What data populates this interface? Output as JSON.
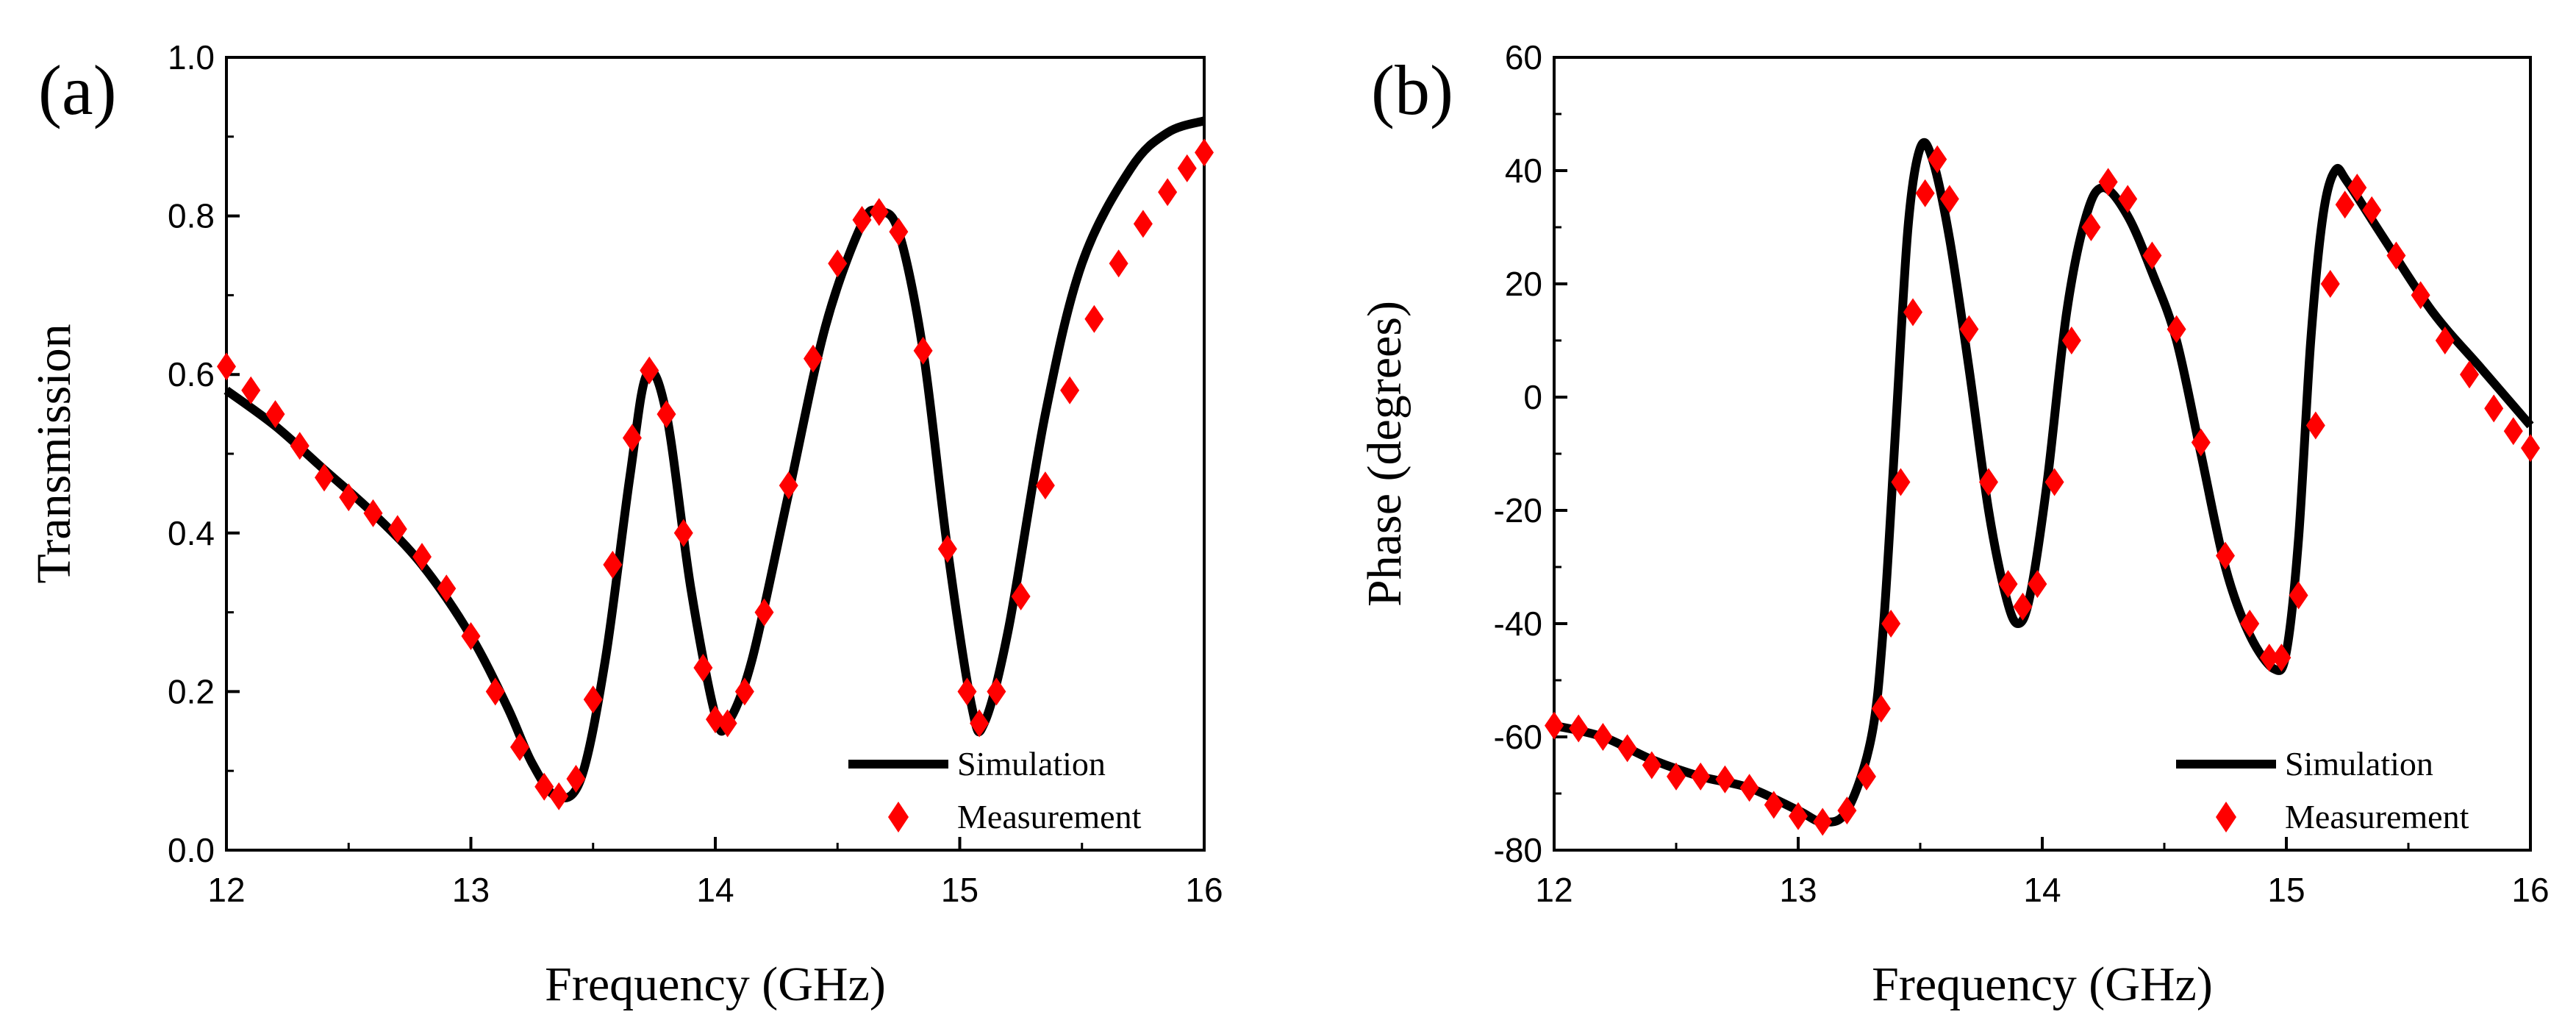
{
  "chart_data": [
    {
      "type": "line",
      "panel_label": "(a)",
      "xlabel": "Frequency (GHz)",
      "ylabel": "Transmission",
      "xlim": [
        12,
        16
      ],
      "ylim": [
        0.0,
        1.0
      ],
      "xticks": [
        12,
        13,
        14,
        15,
        16
      ],
      "xtick_labels": [
        "12",
        "13",
        "14",
        "15",
        "16"
      ],
      "yticks": [
        0.0,
        0.2,
        0.4,
        0.6,
        0.8,
        1.0
      ],
      "ytick_labels": [
        "0.0",
        "0.2",
        "0.4",
        "0.6",
        "0.8",
        "1.0"
      ],
      "legend_position": "bottom-right",
      "series": [
        {
          "name": "Simulation",
          "style": "line",
          "color": "#000000",
          "points": [
            [
              12.0,
              0.58
            ],
            [
              12.2,
              0.535
            ],
            [
              12.4,
              0.48
            ],
            [
              12.6,
              0.425
            ],
            [
              12.8,
              0.36
            ],
            [
              13.0,
              0.27
            ],
            [
              13.15,
              0.18
            ],
            [
              13.25,
              0.11
            ],
            [
              13.35,
              0.068
            ],
            [
              13.45,
              0.09
            ],
            [
              13.55,
              0.24
            ],
            [
              13.65,
              0.47
            ],
            [
              13.72,
              0.6
            ],
            [
              13.8,
              0.55
            ],
            [
              13.9,
              0.33
            ],
            [
              14.0,
              0.17
            ],
            [
              14.05,
              0.16
            ],
            [
              14.15,
              0.24
            ],
            [
              14.3,
              0.45
            ],
            [
              14.45,
              0.66
            ],
            [
              14.6,
              0.79
            ],
            [
              14.67,
              0.805
            ],
            [
              14.75,
              0.78
            ],
            [
              14.85,
              0.63
            ],
            [
              14.95,
              0.38
            ],
            [
              15.05,
              0.18
            ],
            [
              15.1,
              0.16
            ],
            [
              15.2,
              0.28
            ],
            [
              15.35,
              0.55
            ],
            [
              15.5,
              0.74
            ],
            [
              15.7,
              0.86
            ],
            [
              15.85,
              0.905
            ],
            [
              16.0,
              0.92
            ]
          ]
        },
        {
          "name": "Measurement",
          "style": "marker",
          "marker": "diamond",
          "color": "#ff0000",
          "points": [
            [
              12.0,
              0.61
            ],
            [
              12.1,
              0.58
            ],
            [
              12.2,
              0.55
            ],
            [
              12.3,
              0.51
            ],
            [
              12.4,
              0.47
            ],
            [
              12.5,
              0.445
            ],
            [
              12.6,
              0.425
            ],
            [
              12.7,
              0.405
            ],
            [
              12.8,
              0.37
            ],
            [
              12.9,
              0.33
            ],
            [
              13.0,
              0.27
            ],
            [
              13.1,
              0.2
            ],
            [
              13.2,
              0.13
            ],
            [
              13.3,
              0.08
            ],
            [
              13.36,
              0.068
            ],
            [
              13.43,
              0.09
            ],
            [
              13.5,
              0.19
            ],
            [
              13.58,
              0.36
            ],
            [
              13.66,
              0.52
            ],
            [
              13.73,
              0.605
            ],
            [
              13.8,
              0.55
            ],
            [
              13.87,
              0.4
            ],
            [
              13.95,
              0.23
            ],
            [
              14.0,
              0.165
            ],
            [
              14.05,
              0.16
            ],
            [
              14.12,
              0.2
            ],
            [
              14.2,
              0.3
            ],
            [
              14.3,
              0.46
            ],
            [
              14.4,
              0.62
            ],
            [
              14.5,
              0.74
            ],
            [
              14.6,
              0.795
            ],
            [
              14.67,
              0.805
            ],
            [
              14.75,
              0.78
            ],
            [
              14.85,
              0.63
            ],
            [
              14.95,
              0.38
            ],
            [
              15.03,
              0.2
            ],
            [
              15.08,
              0.16
            ],
            [
              15.15,
              0.2
            ],
            [
              15.25,
              0.32
            ],
            [
              15.35,
              0.46
            ],
            [
              15.45,
              0.58
            ],
            [
              15.55,
              0.67
            ],
            [
              15.65,
              0.74
            ],
            [
              15.75,
              0.79
            ],
            [
              15.85,
              0.83
            ],
            [
              15.93,
              0.86
            ],
            [
              16.0,
              0.88
            ]
          ]
        }
      ]
    },
    {
      "type": "line",
      "panel_label": "(b)",
      "xlabel": "Frequency (GHz)",
      "ylabel": "Phase (degrees)",
      "xlim": [
        12,
        16
      ],
      "ylim": [
        -80,
        60
      ],
      "xticks": [
        12,
        13,
        14,
        15,
        16
      ],
      "xtick_labels": [
        "12",
        "13",
        "14",
        "15",
        "16"
      ],
      "yticks": [
        -80,
        -60,
        -40,
        -20,
        0,
        20,
        40,
        60
      ],
      "ytick_labels": [
        "-80",
        "-60",
        "-40",
        "-20",
        "0",
        "20",
        "40",
        "60"
      ],
      "legend_position": "bottom-right",
      "series": [
        {
          "name": "Simulation",
          "style": "line",
          "color": "#000000",
          "points": [
            [
              12.0,
              -58
            ],
            [
              12.2,
              -60
            ],
            [
              12.4,
              -64
            ],
            [
              12.6,
              -67
            ],
            [
              12.8,
              -69
            ],
            [
              13.0,
              -73
            ],
            [
              13.1,
              -75
            ],
            [
              13.2,
              -73
            ],
            [
              13.3,
              -60
            ],
            [
              13.35,
              -40
            ],
            [
              13.4,
              -5
            ],
            [
              13.45,
              30
            ],
            [
              13.5,
              44
            ],
            [
              13.55,
              42
            ],
            [
              13.62,
              28
            ],
            [
              13.7,
              5
            ],
            [
              13.78,
              -20
            ],
            [
              13.85,
              -35
            ],
            [
              13.9,
              -40
            ],
            [
              13.95,
              -35
            ],
            [
              14.02,
              -15
            ],
            [
              14.1,
              15
            ],
            [
              14.18,
              32
            ],
            [
              14.25,
              37
            ],
            [
              14.35,
              32
            ],
            [
              14.45,
              22
            ],
            [
              14.55,
              10
            ],
            [
              14.65,
              -10
            ],
            [
              14.75,
              -30
            ],
            [
              14.85,
              -42
            ],
            [
              14.95,
              -48
            ],
            [
              15.0,
              -45
            ],
            [
              15.05,
              -25
            ],
            [
              15.1,
              10
            ],
            [
              15.15,
              32
            ],
            [
              15.2,
              40
            ],
            [
              15.25,
              38
            ],
            [
              15.4,
              28
            ],
            [
              15.6,
              15
            ],
            [
              15.8,
              5
            ],
            [
              16.0,
              -5
            ]
          ]
        },
        {
          "name": "Measurement",
          "style": "marker",
          "marker": "diamond",
          "color": "#ff0000",
          "points": [
            [
              12.0,
              -58
            ],
            [
              12.1,
              -58.5
            ],
            [
              12.2,
              -60
            ],
            [
              12.3,
              -62
            ],
            [
              12.4,
              -65
            ],
            [
              12.5,
              -67
            ],
            [
              12.6,
              -67
            ],
            [
              12.7,
              -67.5
            ],
            [
              12.8,
              -69
            ],
            [
              12.9,
              -72
            ],
            [
              13.0,
              -74
            ],
            [
              13.1,
              -75
            ],
            [
              13.2,
              -73
            ],
            [
              13.28,
              -67
            ],
            [
              13.34,
              -55
            ],
            [
              13.38,
              -40
            ],
            [
              13.42,
              -15
            ],
            [
              13.47,
              15
            ],
            [
              13.52,
              36
            ],
            [
              13.57,
              42
            ],
            [
              13.62,
              35
            ],
            [
              13.7,
              12
            ],
            [
              13.78,
              -15
            ],
            [
              13.86,
              -33
            ],
            [
              13.92,
              -37
            ],
            [
              13.98,
              -33
            ],
            [
              14.05,
              -15
            ],
            [
              14.12,
              10
            ],
            [
              14.2,
              30
            ],
            [
              14.27,
              38
            ],
            [
              14.35,
              35
            ],
            [
              14.45,
              25
            ],
            [
              14.55,
              12
            ],
            [
              14.65,
              -8
            ],
            [
              14.75,
              -28
            ],
            [
              14.85,
              -40
            ],
            [
              14.93,
              -46
            ],
            [
              14.98,
              -46
            ],
            [
              15.05,
              -35
            ],
            [
              15.12,
              -5
            ],
            [
              15.18,
              20
            ],
            [
              15.24,
              34
            ],
            [
              15.29,
              37
            ],
            [
              15.35,
              33
            ],
            [
              15.45,
              25
            ],
            [
              15.55,
              18
            ],
            [
              15.65,
              10
            ],
            [
              15.75,
              4
            ],
            [
              15.85,
              -2
            ],
            [
              15.93,
              -6
            ],
            [
              16.0,
              -9
            ]
          ]
        }
      ]
    }
  ]
}
